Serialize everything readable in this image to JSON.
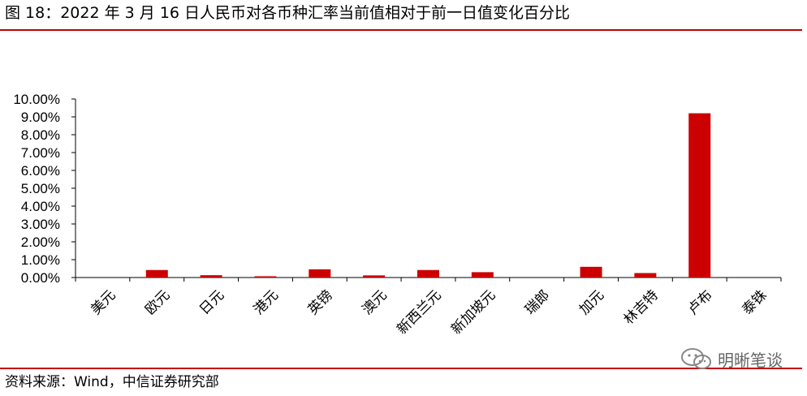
{
  "title": "图 18：2022 年 3 月 16 日人民币对各币种汇率当前值相对于前一日值变化百分比",
  "source": "资料来源：Wind，中信证券研究部",
  "watermark": "明晰笔谈",
  "colors": {
    "bar": "#cc0000",
    "rule": "#c00000"
  },
  "chart_data": {
    "type": "bar",
    "categories": [
      "美元",
      "欧元",
      "日元",
      "港元",
      "英镑",
      "澳元",
      "新西兰元",
      "新加坡元",
      "瑞郎",
      "加元",
      "林吉特",
      "卢布",
      "泰铢"
    ],
    "values": [
      0.0,
      0.42,
      0.13,
      0.07,
      0.46,
      0.12,
      0.42,
      0.3,
      0.0,
      0.6,
      0.25,
      9.2,
      0.0
    ],
    "ylim": [
      0,
      10
    ],
    "yticks": [
      "0.00%",
      "1.00%",
      "2.00%",
      "3.00%",
      "4.00%",
      "5.00%",
      "6.00%",
      "7.00%",
      "8.00%",
      "9.00%",
      "10.00%"
    ],
    "unit": "%",
    "grid": false,
    "legend": false
  }
}
